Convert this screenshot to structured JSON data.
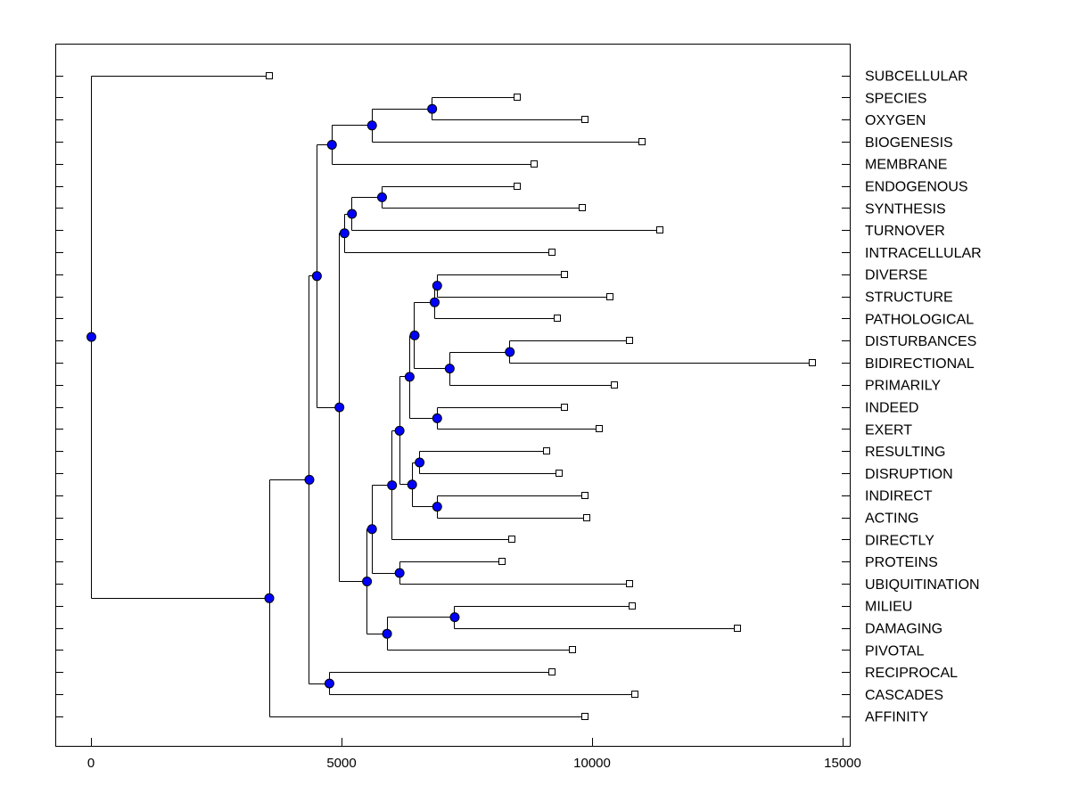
{
  "chart_data": {
    "type": "dendrogram",
    "orientation": "horizontal",
    "xlim": [
      -700,
      15000
    ],
    "xticks": [
      0,
      5000,
      10000,
      15000
    ],
    "xtick_labels": [
      "0",
      "5000",
      "10000",
      "15000"
    ],
    "grid": false,
    "node_color": "#0000ff",
    "leaves": [
      {
        "label": "SUBCELLULAR",
        "x": 3550
      },
      {
        "label": "SPECIES",
        "x": 8500
      },
      {
        "label": "OXYGEN",
        "x": 9850
      },
      {
        "label": "BIOGENESIS",
        "x": 11000
      },
      {
        "label": "MEMBRANE",
        "x": 8850
      },
      {
        "label": "ENDOGENOUS",
        "x": 8500
      },
      {
        "label": "SYNTHESIS",
        "x": 9800
      },
      {
        "label": "TURNOVER",
        "x": 11350
      },
      {
        "label": "INTRACELLULAR",
        "x": 9200
      },
      {
        "label": "DIVERSE",
        "x": 9450
      },
      {
        "label": "STRUCTURE",
        "x": 10350
      },
      {
        "label": "PATHOLOGICAL",
        "x": 9300
      },
      {
        "label": "DISTURBANCES",
        "x": 10750
      },
      {
        "label": "BIDIRECTIONAL",
        "x": 14400
      },
      {
        "label": "PRIMARILY",
        "x": 10450
      },
      {
        "label": "INDEED",
        "x": 9450
      },
      {
        "label": "EXERT",
        "x": 10150
      },
      {
        "label": "RESULTING",
        "x": 9100
      },
      {
        "label": "DISRUPTION",
        "x": 9350
      },
      {
        "label": "INDIRECT",
        "x": 9850
      },
      {
        "label": "ACTING",
        "x": 9900
      },
      {
        "label": "DIRECTLY",
        "x": 8400
      },
      {
        "label": "PROTEINS",
        "x": 8200
      },
      {
        "label": "UBIQUITINATION",
        "x": 10750
      },
      {
        "label": "MILIEU",
        "x": 10800
      },
      {
        "label": "DAMAGING",
        "x": 12900
      },
      {
        "label": "PIVOTAL",
        "x": 9600
      },
      {
        "label": "RECIPROCAL",
        "x": 9200
      },
      {
        "label": "CASCADES",
        "x": 10850
      },
      {
        "label": "AFFINITY",
        "x": 9850
      }
    ],
    "merges": [
      {
        "id": "m1",
        "x": 6800,
        "children": [
          "L:SPECIES",
          "L:OXYGEN"
        ]
      },
      {
        "id": "m2",
        "x": 5600,
        "children": [
          "m1",
          "L:BIOGENESIS"
        ]
      },
      {
        "id": "m3",
        "x": 4800,
        "children": [
          "m2",
          "L:MEMBRANE"
        ]
      },
      {
        "id": "m4",
        "x": 5800,
        "children": [
          "L:ENDOGENOUS",
          "L:SYNTHESIS"
        ]
      },
      {
        "id": "m5",
        "x": 5200,
        "children": [
          "m4",
          "L:TURNOVER"
        ]
      },
      {
        "id": "m6",
        "x": 5050,
        "children": [
          "m5",
          "L:INTRACELLULAR"
        ]
      },
      {
        "id": "m7",
        "x": 6900,
        "children": [
          "L:DIVERSE",
          "L:STRUCTURE"
        ]
      },
      {
        "id": "m8",
        "x": 6850,
        "children": [
          "m7",
          "L:PATHOLOGICAL"
        ]
      },
      {
        "id": "m9",
        "x": 8350,
        "children": [
          "L:DISTURBANCES",
          "L:BIDIRECTIONAL"
        ]
      },
      {
        "id": "m10",
        "x": 7150,
        "children": [
          "m9",
          "L:PRIMARILY"
        ]
      },
      {
        "id": "m11",
        "x": 6450,
        "children": [
          "m8",
          "m10"
        ]
      },
      {
        "id": "m12",
        "x": 6900,
        "children": [
          "L:INDEED",
          "L:EXERT"
        ]
      },
      {
        "id": "m13",
        "x": 6350,
        "children": [
          "m11",
          "m12"
        ]
      },
      {
        "id": "m14",
        "x": 6550,
        "children": [
          "L:RESULTING",
          "L:DISRUPTION"
        ]
      },
      {
        "id": "m15",
        "x": 6900,
        "children": [
          "L:INDIRECT",
          "L:ACTING"
        ]
      },
      {
        "id": "m16",
        "x": 6400,
        "children": [
          "m14",
          "m15"
        ]
      },
      {
        "id": "m17",
        "x": 6150,
        "children": [
          "m13",
          "m16"
        ]
      },
      {
        "id": "m18",
        "x": 6000,
        "children": [
          "m17",
          "L:DIRECTLY"
        ]
      },
      {
        "id": "m19",
        "x": 6150,
        "children": [
          "L:PROTEINS",
          "L:UBIQUITINATION"
        ]
      },
      {
        "id": "m20",
        "x": 5600,
        "children": [
          "m18",
          "m19"
        ]
      },
      {
        "id": "m21",
        "x": 7250,
        "children": [
          "L:MILIEU",
          "L:DAMAGING"
        ]
      },
      {
        "id": "m22",
        "x": 5900,
        "children": [
          "m21",
          "L:PIVOTAL"
        ]
      },
      {
        "id": "m23",
        "x": 5500,
        "children": [
          "m20",
          "m22"
        ]
      },
      {
        "id": "m24",
        "x": 4950,
        "children": [
          "m6",
          "m23"
        ]
      },
      {
        "id": "m25",
        "x": 4500,
        "children": [
          "m3",
          "m24"
        ]
      },
      {
        "id": "m26",
        "x": 4750,
        "children": [
          "L:RECIPROCAL",
          "L:CASCADES"
        ]
      },
      {
        "id": "m27",
        "x": 4350,
        "children": [
          "m25",
          "m26"
        ]
      },
      {
        "id": "m28",
        "x": 3550,
        "children": [
          "m27",
          "L:AFFINITY"
        ]
      },
      {
        "id": "m29",
        "x": 0,
        "children": [
          "L:SUBCELLULAR",
          "m28"
        ]
      }
    ]
  }
}
